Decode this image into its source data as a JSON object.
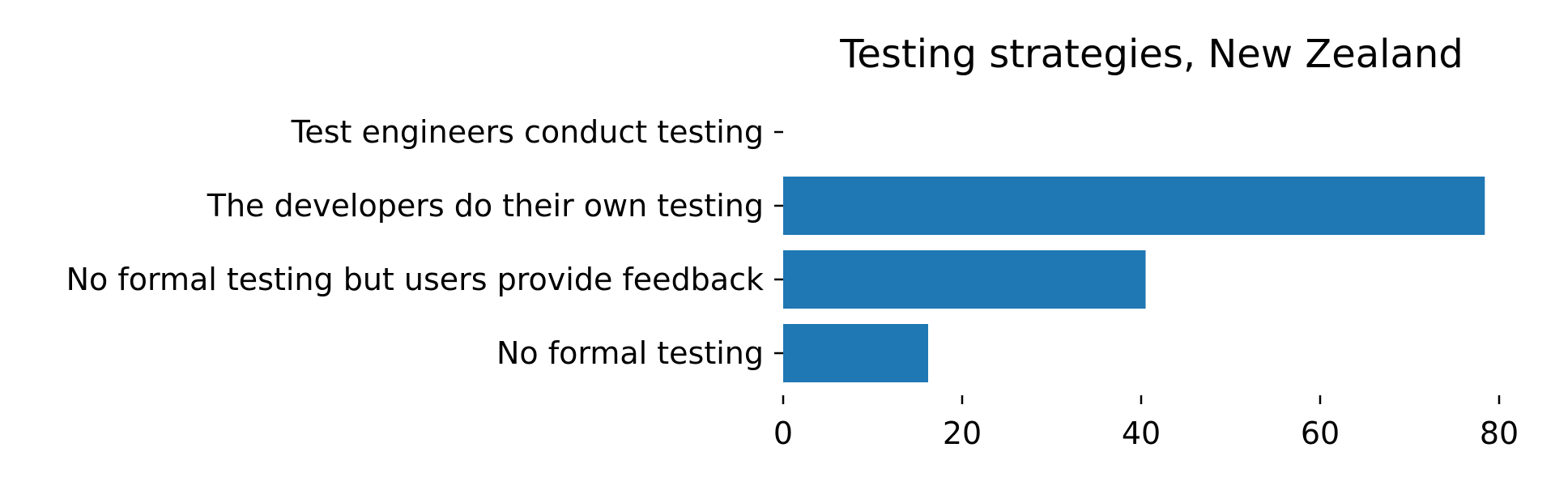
{
  "chart_data": {
    "type": "bar",
    "orientation": "horizontal",
    "title": "Testing strategies, New Zealand",
    "xlabel": "",
    "ylabel": "",
    "categories": [
      "Test engineers conduct testing",
      "The developers do their own testing",
      "No formal testing but users provide feedback",
      "No formal testing"
    ],
    "values": [
      0,
      78.4,
      40.5,
      16.2
    ],
    "xlim": [
      0,
      80
    ],
    "xticks": [
      0,
      20,
      40,
      60,
      80
    ],
    "xtick_labels": [
      "0",
      "20",
      "40",
      "60",
      "80"
    ],
    "grid": false,
    "legend": "none",
    "bar_color": "#1f77b4"
  }
}
